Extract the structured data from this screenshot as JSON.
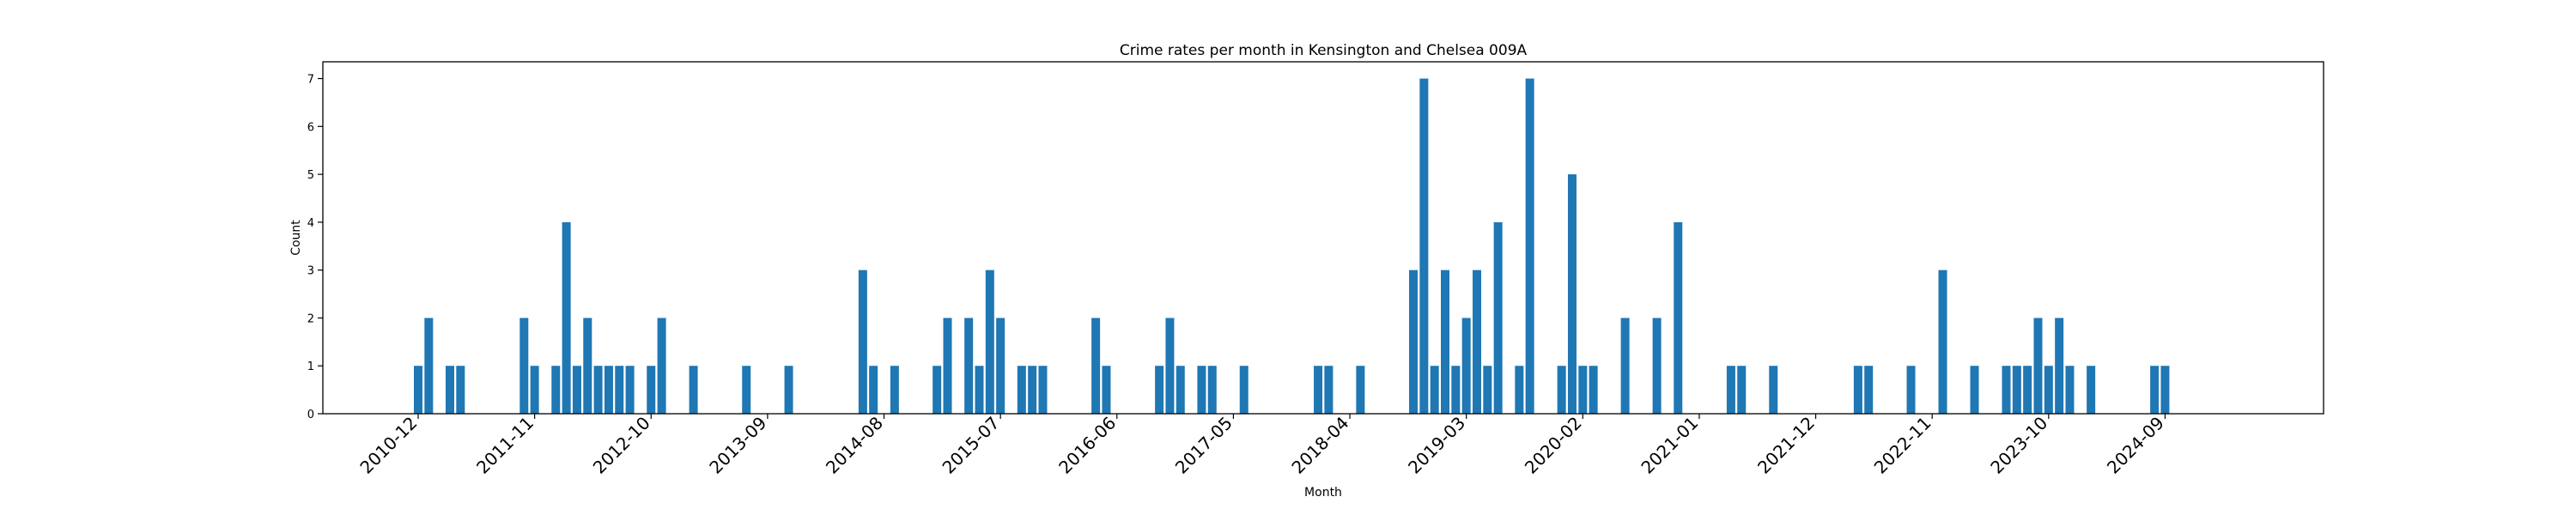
{
  "chart_data": {
    "type": "bar",
    "title": "Crime rates per month in Kensington and Chelsea 009A",
    "xlabel": "Month",
    "ylabel": "Count",
    "ylim": [
      0,
      7.35
    ],
    "yticks": [
      0,
      1,
      2,
      3,
      4,
      5,
      6,
      7
    ],
    "xticks": [
      "2010-12",
      "2011-11",
      "2012-10",
      "2013-09",
      "2014-08",
      "2015-07",
      "2016-06",
      "2017-05",
      "2018-04",
      "2019-03",
      "2020-02",
      "2021-01",
      "2021-12",
      "2022-11",
      "2023-10",
      "2024-09"
    ],
    "grid": false,
    "color": "#1f77b4",
    "categories": [
      "2010-12",
      "2011-01",
      "2011-03",
      "2011-04",
      "2011-10",
      "2011-11",
      "2012-01",
      "2012-02",
      "2012-03",
      "2012-04",
      "2012-05",
      "2012-06",
      "2012-07",
      "2012-08",
      "2012-10",
      "2012-11",
      "2013-02",
      "2013-07",
      "2013-11",
      "2014-06",
      "2014-07",
      "2014-09",
      "2015-01",
      "2015-02",
      "2015-04",
      "2015-05",
      "2015-06",
      "2015-07",
      "2015-09",
      "2015-10",
      "2015-11",
      "2016-04",
      "2016-05",
      "2016-10",
      "2016-11",
      "2016-12",
      "2017-02",
      "2017-03",
      "2017-06",
      "2018-01",
      "2018-02",
      "2018-05",
      "2018-10",
      "2018-11",
      "2018-12",
      "2019-01",
      "2019-02",
      "2019-03",
      "2019-04",
      "2019-05",
      "2019-06",
      "2019-08",
      "2019-09",
      "2019-12",
      "2020-01",
      "2020-02",
      "2020-03",
      "2020-06",
      "2020-09",
      "2020-11",
      "2021-04",
      "2021-05",
      "2021-08",
      "2022-04",
      "2022-05",
      "2022-09",
      "2022-12",
      "2023-03",
      "2023-06",
      "2023-07",
      "2023-08",
      "2023-09",
      "2023-10",
      "2023-11",
      "2023-12",
      "2024-02",
      "2024-08",
      "2024-09"
    ],
    "values": [
      1,
      2,
      1,
      1,
      2,
      1,
      1,
      4,
      1,
      2,
      1,
      1,
      1,
      1,
      1,
      2,
      1,
      1,
      1,
      3,
      1,
      1,
      1,
      2,
      2,
      1,
      3,
      2,
      1,
      1,
      1,
      2,
      1,
      1,
      2,
      1,
      1,
      1,
      1,
      1,
      1,
      1,
      3,
      7,
      1,
      3,
      1,
      2,
      3,
      1,
      4,
      1,
      7,
      1,
      5,
      1,
      1,
      2,
      2,
      4,
      1,
      1,
      1,
      1,
      1,
      1,
      3,
      1,
      1,
      1,
      1,
      2,
      1,
      2,
      1,
      1,
      1,
      1
    ]
  }
}
